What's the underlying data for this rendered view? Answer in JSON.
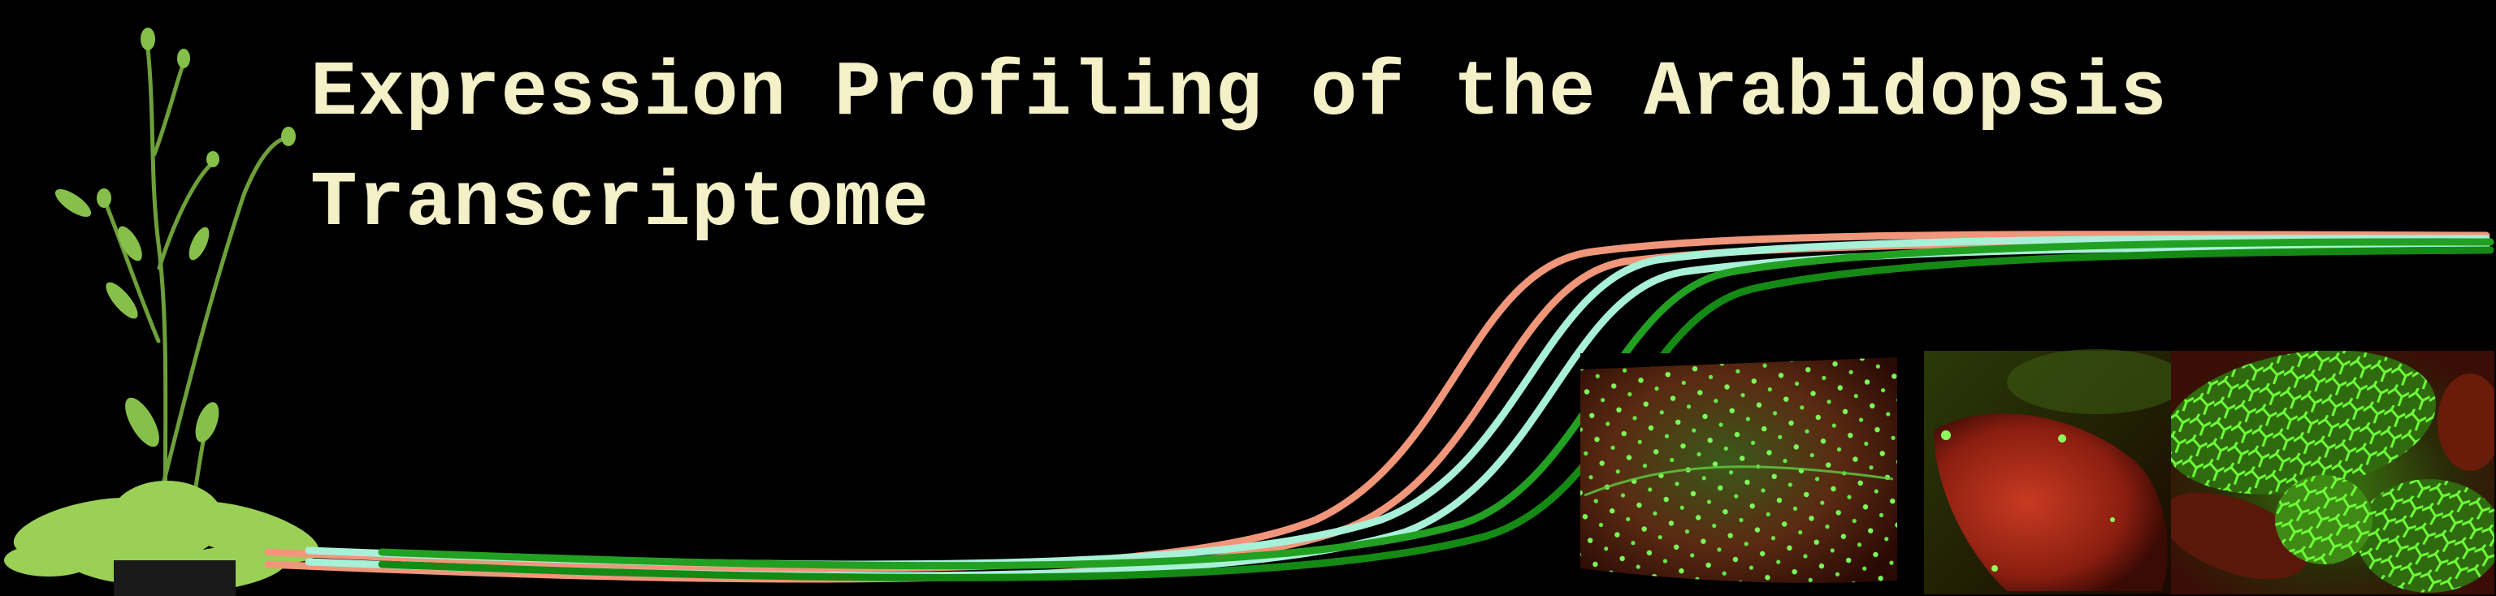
{
  "banner": {
    "title_line_1": "Expression Profiling of the Arabidopsis",
    "title_line_2": "Transcriptome"
  },
  "images": [
    {
      "name": "arabidopsis-plant-photo",
      "description_icon": "plant-icon"
    },
    {
      "name": "leaf-gfp-trichomes-photo",
      "description_icon": "leaf-icon"
    },
    {
      "name": "red-leaf-gfp-photo",
      "description_icon": "leaf-icon"
    },
    {
      "name": "seedling-gfp-photo",
      "description_icon": "leaf-icon"
    }
  ],
  "colors": {
    "background": "#000000",
    "title": "#f4f0c8",
    "curve_salmon": "#f0967a",
    "curve_mint": "#a8f0d8",
    "curve_green": "#22a022",
    "curve_green_dark": "#148a14"
  }
}
